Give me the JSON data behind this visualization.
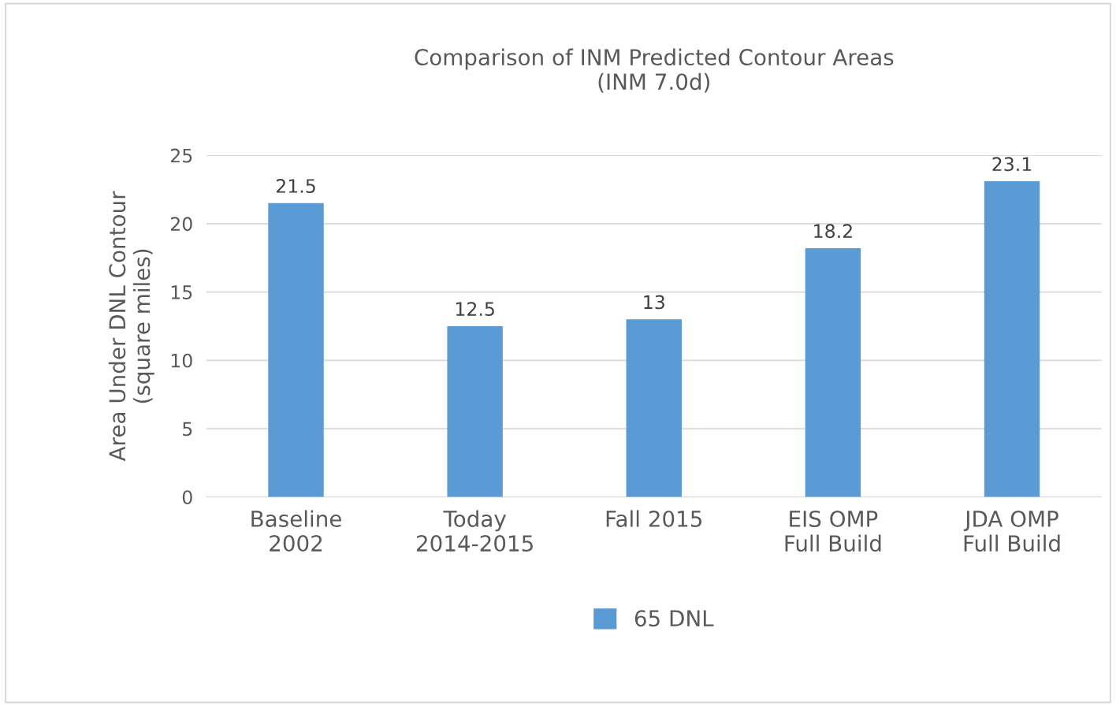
{
  "chart_data": {
    "type": "bar",
    "title": "Comparison of INM Predicted Contour Areas\n(INM 7.0d)",
    "ylabel": "Area Under DNL Contour\n(square miles)",
    "categories": [
      "Baseline\n2002",
      "Today\n2014-2015",
      "Fall 2015",
      "EIS OMP\nFull Build",
      "JDA OMP\nFull Build"
    ],
    "series": [
      {
        "name": "65 DNL",
        "color": "#5b9bd5",
        "values": [
          21.5,
          12.5,
          13,
          18.2,
          23.1
        ]
      }
    ],
    "ylim": [
      0,
      25
    ],
    "yticks": [
      0,
      5,
      10,
      15,
      20,
      25
    ],
    "grid": "y",
    "legend": "bottom",
    "data_labels": true
  }
}
